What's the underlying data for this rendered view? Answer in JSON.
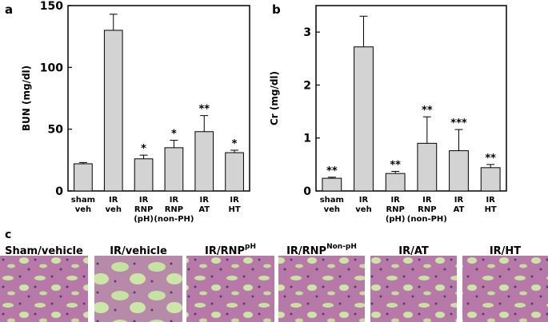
{
  "chart_data": [
    {
      "type": "bar",
      "label": "a",
      "ylabel": "BUN (mg/dl)",
      "categories": [
        [
          "sham",
          "veh"
        ],
        [
          "IR",
          "veh"
        ],
        [
          "IR",
          "RNP",
          "(pH)"
        ],
        [
          "IR",
          "RNP",
          "(non-PH)"
        ],
        [
          "IR",
          "AT"
        ],
        [
          "IR",
          "HT"
        ]
      ],
      "values": [
        22,
        130,
        26,
        35,
        48,
        31
      ],
      "errors": [
        1,
        13,
        3,
        6,
        13,
        2
      ],
      "significance": [
        null,
        null,
        "*",
        "*",
        "**",
        "*"
      ],
      "color": "#d3d3d3",
      "ylim": [
        0,
        150
      ],
      "yticks": [
        0,
        50,
        100,
        150
      ]
    },
    {
      "type": "bar",
      "label": "b",
      "ylabel": "Cr (mg/dl)",
      "categories": [
        [
          "sham",
          "veh"
        ],
        [
          "IR",
          "veh"
        ],
        [
          "IR",
          "RNP",
          "(pH)"
        ],
        [
          "IR",
          "RNP",
          "(non-PH)"
        ],
        [
          "IR",
          "AT"
        ],
        [
          "IR",
          "HT"
        ]
      ],
      "values": [
        0.24,
        2.72,
        0.33,
        0.9,
        0.76,
        0.44
      ],
      "errors": [
        0.02,
        0.58,
        0.04,
        0.5,
        0.4,
        0.06
      ],
      "significance": [
        "**",
        null,
        "**",
        "**",
        "***",
        "**"
      ],
      "color": "#d3d3d3",
      "ylim": [
        0,
        3.5
      ],
      "yticks": [
        0,
        1,
        2,
        3
      ]
    }
  ],
  "panel_c": {
    "label": "c",
    "images": [
      {
        "text": "Sham/vehicle"
      },
      {
        "text": "IR/vehicle"
      },
      {
        "text": "IR/RNP",
        "sup": "pH"
      },
      {
        "text": "IR/RNP",
        "sup": "Non-pH"
      },
      {
        "text": "IR/AT"
      },
      {
        "text": "IR/HT"
      }
    ]
  }
}
